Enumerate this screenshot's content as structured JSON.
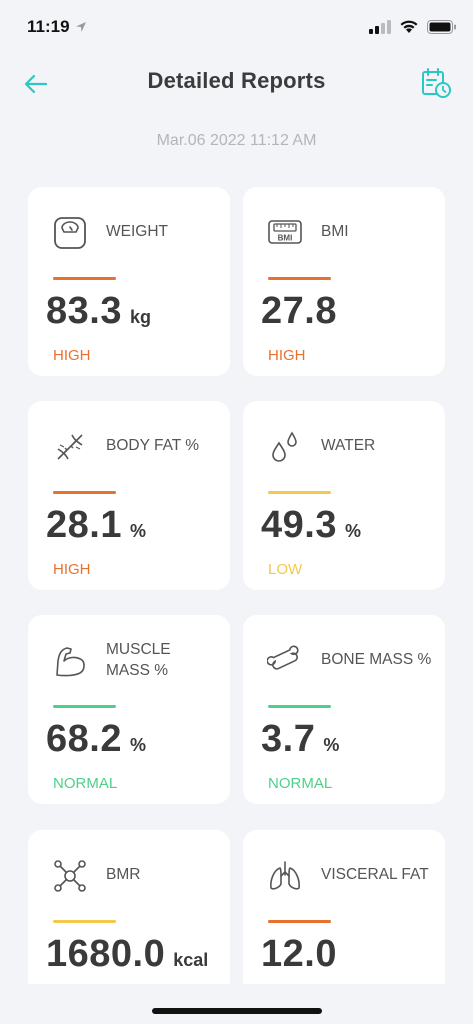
{
  "status_bar": {
    "time": "11:19"
  },
  "nav": {
    "title": "Detailed Reports"
  },
  "date": "Mar.06 2022 11:12 AM",
  "colors": {
    "accent": "#2CC7C4",
    "high": "#E8712E",
    "low": "#F2C94C",
    "normal": "#4FD08A"
  },
  "cards": [
    {
      "label": "WEIGHT",
      "value": "83.3",
      "unit": "kg",
      "status": "HIGH",
      "icon": "scale-icon"
    },
    {
      "label": "BMI",
      "value": "27.8",
      "unit": "",
      "status": "HIGH",
      "icon": "bmi-icon"
    },
    {
      "label": "BODY FAT %",
      "value": "28.1",
      "unit": "%",
      "status": "HIGH",
      "icon": "dna-icon"
    },
    {
      "label": "WATER",
      "value": "49.3",
      "unit": "%",
      "status": "LOW",
      "icon": "water-drops-icon"
    },
    {
      "label": "MUSCLE MASS %",
      "label_line1": "MUSCLE",
      "label_line2": "MASS %",
      "value": "68.2",
      "unit": "%",
      "status": "NORMAL",
      "icon": "muscle-arm-icon"
    },
    {
      "label": "BONE MASS %",
      "value": "3.7",
      "unit": "%",
      "status": "NORMAL",
      "icon": "bone-icon"
    },
    {
      "label": "BMR",
      "value": "1680.0",
      "unit": "kcal",
      "status": "",
      "status_color": "low",
      "icon": "molecule-icon"
    },
    {
      "label": "VISCERAL FAT",
      "value": "12.0",
      "unit": "",
      "status": "",
      "status_color": "high",
      "icon": "lungs-icon"
    }
  ]
}
